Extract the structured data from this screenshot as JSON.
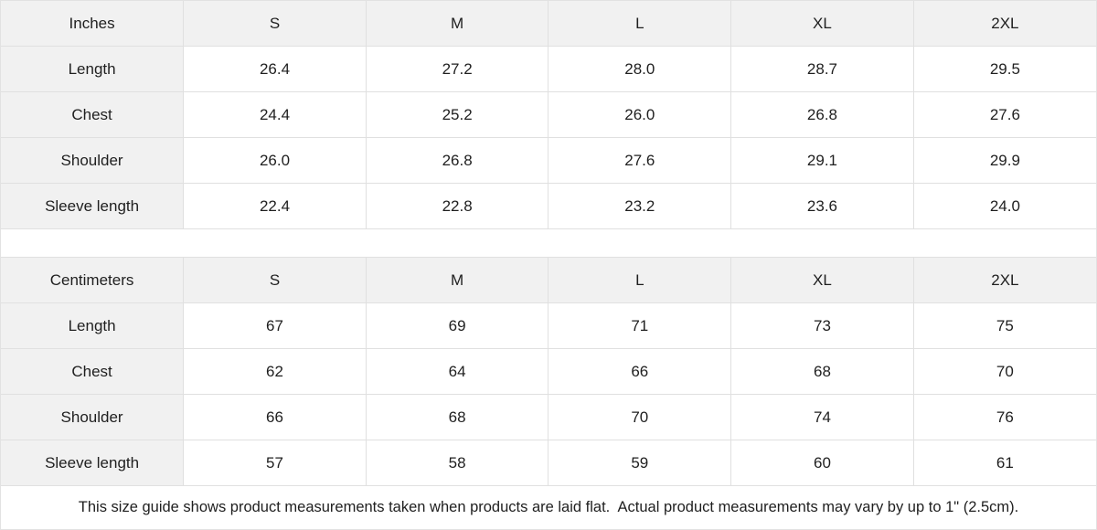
{
  "colors": {
    "header_bg": "#f1f1f1",
    "border": "#e0e0e0",
    "text": "#1f1f1f",
    "background": "#ffffff"
  },
  "tables": [
    {
      "unit_label": "Inches",
      "columns": [
        "S",
        "M",
        "L",
        "XL",
        "2XL"
      ],
      "rows": [
        {
          "label": "Length",
          "values": [
            "26.4",
            "27.2",
            "28.0",
            "28.7",
            "29.5"
          ]
        },
        {
          "label": "Chest",
          "values": [
            "24.4",
            "25.2",
            "26.0",
            "26.8",
            "27.6"
          ]
        },
        {
          "label": "Shoulder",
          "values": [
            "26.0",
            "26.8",
            "27.6",
            "29.1",
            "29.9"
          ]
        },
        {
          "label": "Sleeve length",
          "values": [
            "22.4",
            "22.8",
            "23.2",
            "23.6",
            "24.0"
          ]
        }
      ]
    },
    {
      "unit_label": "Centimeters",
      "columns": [
        "S",
        "M",
        "L",
        "XL",
        "2XL"
      ],
      "rows": [
        {
          "label": "Length",
          "values": [
            "67",
            "69",
            "71",
            "73",
            "75"
          ]
        },
        {
          "label": "Chest",
          "values": [
            "62",
            "64",
            "66",
            "68",
            "70"
          ]
        },
        {
          "label": "Shoulder",
          "values": [
            "66",
            "68",
            "70",
            "74",
            "76"
          ]
        },
        {
          "label": "Sleeve length",
          "values": [
            "57",
            "58",
            "59",
            "60",
            "61"
          ]
        }
      ]
    }
  ],
  "footnote": "This size guide shows product measurements taken when products are laid flat.  Actual product measurements may vary by up to 1\" (2.5cm)."
}
